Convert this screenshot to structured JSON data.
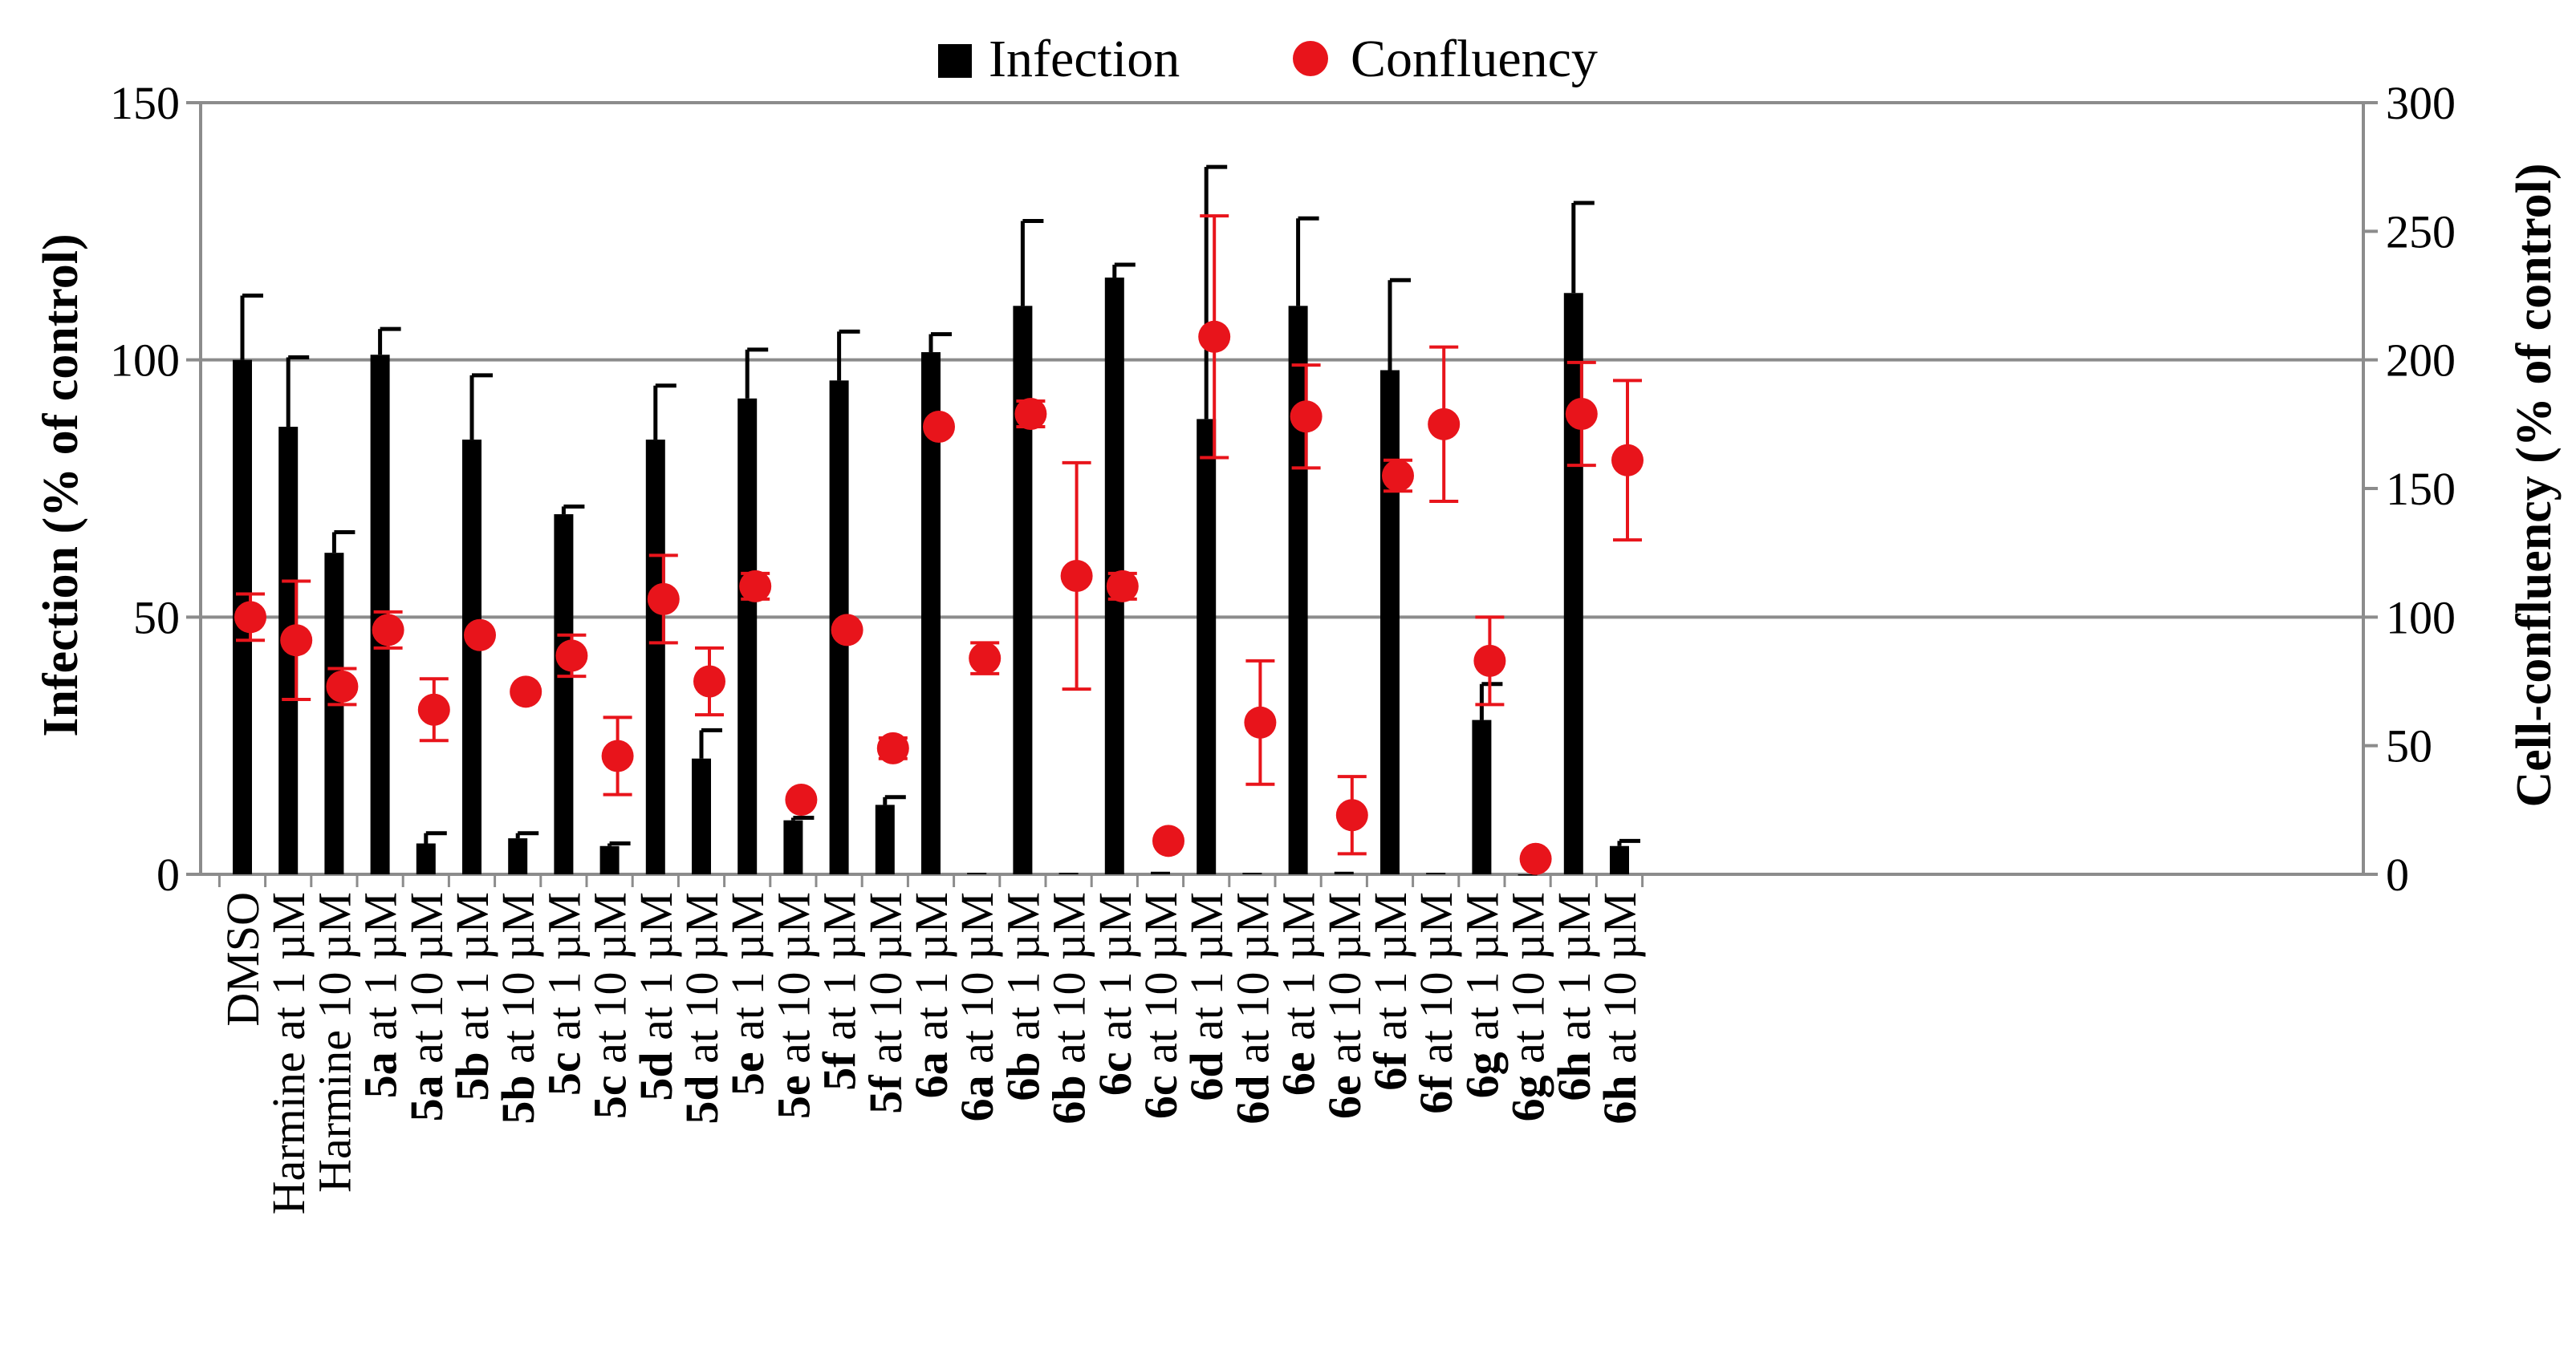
{
  "chart_data": {
    "type": "bar",
    "legend": {
      "position": "top",
      "entries": [
        {
          "label": "Infection",
          "marker": "square"
        },
        {
          "label": "Confluency",
          "marker": "circle"
        }
      ]
    },
    "ylabel": "Infection (% of control)",
    "y2label": "Cell-confluency (% of control)",
    "ylim": [
      0,
      150
    ],
    "yticks": [
      0,
      50,
      100,
      150
    ],
    "y2lim": [
      0,
      300
    ],
    "y2ticks": [
      0,
      50,
      100,
      150,
      200,
      250,
      300
    ],
    "grid": "horizontal",
    "categories": [
      {
        "bold": "",
        "text": "DMSO"
      },
      {
        "bold": "",
        "text": "Harmine at 1 µM"
      },
      {
        "bold": "",
        "text": "Harmine  10 µM"
      },
      {
        "bold": "5a",
        "text": " at 1 µM"
      },
      {
        "bold": "5a",
        "text": " at 10 µM"
      },
      {
        "bold": "5b",
        "text": " at 1 µM"
      },
      {
        "bold": "5b",
        "text": " at 10 µM"
      },
      {
        "bold": "5c",
        "text": " at 1 µM"
      },
      {
        "bold": "5c",
        "text": " at 10 µM"
      },
      {
        "bold": "5d",
        "text": " at 1 µM"
      },
      {
        "bold": "5d",
        "text": " at 10 µM"
      },
      {
        "bold": "5e",
        "text": " at 1 µM"
      },
      {
        "bold": "5e",
        "text": " at 10 µM"
      },
      {
        "bold": "5f",
        "text": " at 1 µM"
      },
      {
        "bold": "5f",
        "text": " at 10 µM"
      },
      {
        "bold": "6a",
        "text": " at 1 µM"
      },
      {
        "bold": "6a",
        "text": " at 10 µM"
      },
      {
        "bold": "6b",
        "text": " at 1 µM"
      },
      {
        "bold": "6b",
        "text": " at 10 µM"
      },
      {
        "bold": "6c",
        "text": " at 1 µM"
      },
      {
        "bold": "6c",
        "text": " at 10 µM"
      },
      {
        "bold": "6d",
        "text": " at 1 µM"
      },
      {
        "bold": "6d",
        "text": " at 10 µM"
      },
      {
        "bold": "6e",
        "text": " at 1 µM"
      },
      {
        "bold": "6e",
        "text": " at 10 µM"
      },
      {
        "bold": "6f",
        "text": " at 1 µM"
      },
      {
        "bold": "6f",
        "text": " at 10 µM"
      },
      {
        "bold": "6g",
        "text": " at 1 µM"
      },
      {
        "bold": "6g",
        "text": " at 10 µM"
      },
      {
        "bold": "6h",
        "text": " at 1 µM"
      },
      {
        "bold": "6h",
        "text": " at 10 µM"
      }
    ],
    "series": [
      {
        "name": "Infection",
        "axis": "left",
        "color": "#000000",
        "values": [
          100,
          87,
          62.5,
          101,
          6,
          84.5,
          7,
          70,
          5.5,
          84.5,
          22.5,
          92.5,
          10.5,
          96,
          13.5,
          101.5,
          0.3,
          110.5,
          0.3,
          116,
          0.5,
          88.5,
          0.3,
          110.5,
          0.5,
          98,
          0.3,
          30,
          0,
          113,
          5.5
        ],
        "error": [
          12.5,
          13.5,
          4,
          5,
          2,
          12.5,
          1,
          1.5,
          0.5,
          10.5,
          5.5,
          9.5,
          0.5,
          9.5,
          1.5,
          3.5,
          0,
          16.5,
          0,
          2.5,
          0,
          49,
          0,
          17,
          0,
          17.5,
          0,
          7,
          0,
          17.5,
          1
        ]
      },
      {
        "name": "Confluency",
        "axis": "right",
        "color": "#e8141b",
        "values": [
          100,
          91,
          73,
          95,
          64,
          93,
          71,
          85,
          46,
          107,
          75,
          112,
          29,
          95,
          49,
          174,
          84,
          179,
          116,
          112,
          13,
          209,
          59,
          178,
          23,
          155,
          175,
          83,
          6,
          179,
          161
        ],
        "error": [
          9,
          23,
          7,
          7,
          12,
          0,
          0,
          8,
          15,
          17,
          13,
          5,
          0,
          0,
          4,
          0,
          6,
          5,
          44,
          5,
          0,
          47,
          24,
          20,
          15,
          6,
          30,
          17,
          0,
          20,
          31
        ]
      }
    ]
  }
}
